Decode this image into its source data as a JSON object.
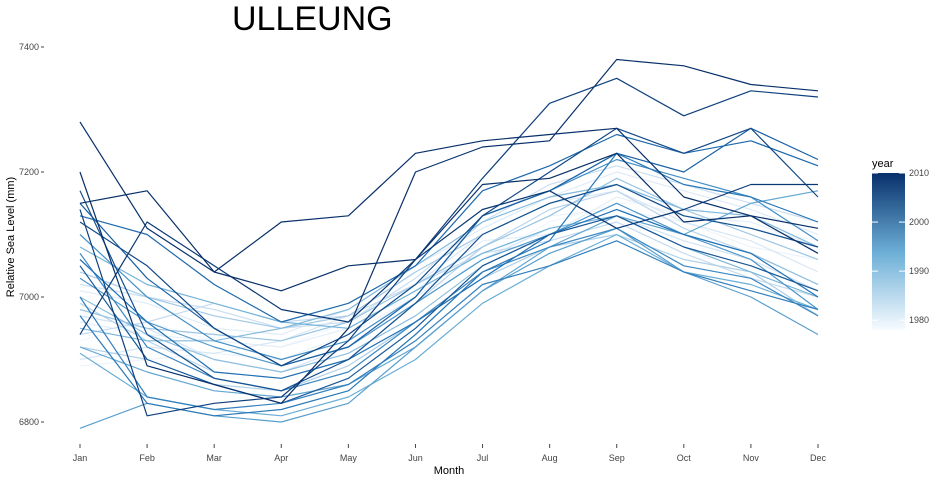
{
  "chart_data": {
    "type": "line",
    "title": "ULLEUNG",
    "xlabel": "Month",
    "ylabel": "Relative Sea Level (mm)",
    "categories": [
      "Jan",
      "Feb",
      "Mar",
      "Apr",
      "May",
      "Jun",
      "Jul",
      "Aug",
      "Sep",
      "Oct",
      "Nov",
      "Dec"
    ],
    "ylim": [
      6780,
      7410
    ],
    "yticks": [
      6800,
      7000,
      7200,
      7400
    ],
    "yticklabels": [
      "6800",
      "7000",
      "7200",
      "7400"
    ],
    "grid": false,
    "legend": {
      "title": "year",
      "placement": "right",
      "type": "gradient",
      "range": [
        1978,
        2010
      ],
      "ticks": [
        1980,
        1990,
        2000,
        2010
      ],
      "ticklabels": [
        "1980",
        "1990",
        "2000",
        "2010"
      ],
      "color_low": "#f7fbff",
      "color_high": "#08306b"
    },
    "series": [
      {
        "year": 1979,
        "values": [
          6930,
          6960,
          6930,
          6920,
          6960,
          7000,
          7060,
          7120,
          7150,
          7150,
          7110,
          7090
        ]
      },
      {
        "year": 1980,
        "values": [
          6890,
          6900,
          6910,
          6900,
          6940,
          7000,
          7080,
          7130,
          7140,
          7120,
          7080,
          7060
        ]
      },
      {
        "year": 1981,
        "values": [
          6960,
          6940,
          6930,
          6920,
          6950,
          7010,
          7090,
          7100,
          7160,
          7130,
          7120,
          7080
        ]
      },
      {
        "year": 1982,
        "values": [
          7010,
          6990,
          6950,
          6940,
          6980,
          7050,
          7110,
          7160,
          7200,
          7170,
          7140,
          7100
        ]
      },
      {
        "year": 1983,
        "values": [
          6900,
          6920,
          6910,
          6930,
          6970,
          7020,
          7100,
          7150,
          7170,
          7120,
          7090,
          7040
        ]
      },
      {
        "year": 1984,
        "values": [
          6970,
          6950,
          6900,
          6880,
          6920,
          6990,
          7060,
          7110,
          7130,
          7090,
          7060,
          7010
        ]
      },
      {
        "year": 1985,
        "values": [
          7020,
          7000,
          6980,
          6950,
          6960,
          7030,
          7120,
          7180,
          7210,
          7180,
          7150,
          7120
        ]
      },
      {
        "year": 1986,
        "values": [
          6940,
          6960,
          6990,
          6960,
          6970,
          7020,
          7070,
          7090,
          7120,
          7070,
          7030,
          7000
        ]
      },
      {
        "year": 1987,
        "values": [
          6990,
          6930,
          6880,
          6870,
          6900,
          6990,
          7080,
          7140,
          7170,
          7110,
          7070,
          7020
        ]
      },
      {
        "year": 1988,
        "values": [
          6920,
          6900,
          6860,
          6850,
          6890,
          6960,
          7030,
          7080,
          7100,
          7060,
          7040,
          6970
        ]
      },
      {
        "year": 1989,
        "values": [
          7040,
          7000,
          6970,
          6950,
          6970,
          7040,
          7100,
          7150,
          7180,
          7130,
          7110,
          7080
        ]
      },
      {
        "year": 1990,
        "values": [
          6980,
          6950,
          6940,
          6930,
          6960,
          7020,
          7080,
          7130,
          7190,
          7140,
          7100,
          7060
        ]
      },
      {
        "year": 1991,
        "values": [
          7000,
          6940,
          6900,
          6880,
          6910,
          6970,
          7050,
          7100,
          7140,
          7100,
          7070,
          7020
        ]
      },
      {
        "year": 1992,
        "values": [
          6950,
          6930,
          6930,
          6950,
          6980,
          7050,
          7120,
          7160,
          7180,
          7140,
          7130,
          7080
        ]
      },
      {
        "year": 1993,
        "values": [
          7080,
          7020,
          6990,
          6960,
          6950,
          7010,
          7070,
          7110,
          7130,
          7080,
          7040,
          7000
        ]
      },
      {
        "year": 1994,
        "values": [
          6910,
          6840,
          6820,
          6810,
          6840,
          6900,
          6990,
          7050,
          7100,
          7040,
          7020,
          6980
        ]
      },
      {
        "year": 1995,
        "values": [
          6920,
          6880,
          6850,
          6840,
          6860,
          6920,
          7010,
          7080,
          7130,
          7100,
          7150,
          7170
        ]
      },
      {
        "year": 1996,
        "values": [
          6790,
          6830,
          6810,
          6800,
          6830,
          6920,
          7010,
          7070,
          7110,
          7040,
          7000,
          6940
        ]
      },
      {
        "year": 1997,
        "values": [
          7030,
          6960,
          6920,
          6890,
          6920,
          6990,
          7060,
          7100,
          7150,
          7100,
          7060,
          6980
        ]
      },
      {
        "year": 1998,
        "values": [
          7100,
          7000,
          6930,
          6900,
          6930,
          7000,
          7130,
          7170,
          7220,
          7190,
          7160,
          7090
        ]
      },
      {
        "year": 1999,
        "values": [
          7070,
          6920,
          6870,
          6850,
          6880,
          6960,
          7040,
          7080,
          7110,
          7050,
          7030,
          6970
        ]
      },
      {
        "year": 2000,
        "values": [
          7000,
          6840,
          6820,
          6830,
          6860,
          6930,
          7020,
          7050,
          7090,
          7040,
          7010,
          6980
        ]
      },
      {
        "year": 2001,
        "values": [
          6970,
          6830,
          6810,
          6820,
          6850,
          6940,
          7040,
          7090,
          7230,
          7180,
          7160,
          7120
        ]
      },
      {
        "year": 2002,
        "values": [
          7060,
          6960,
          6880,
          6870,
          6900,
          6960,
          7030,
          7100,
          7140,
          7100,
          7070,
          7000
        ]
      },
      {
        "year": 2003,
        "values": [
          7130,
          7100,
          7020,
          6960,
          6990,
          7050,
          7170,
          7210,
          7260,
          7230,
          7250,
          7210
        ]
      },
      {
        "year": 2004,
        "values": [
          7150,
          7030,
          6950,
          6890,
          6920,
          7000,
          7130,
          7170,
          7230,
          7200,
          7270,
          7220
        ]
      },
      {
        "year": 2005,
        "values": [
          7050,
          6900,
          6860,
          6830,
          6870,
          6950,
          7050,
          7100,
          7130,
          7080,
          7050,
          7010
        ]
      },
      {
        "year": 2006,
        "values": [
          7170,
          6940,
          6870,
          6850,
          6900,
          6990,
          7100,
          7150,
          7180,
          7130,
          7110,
          7080
        ]
      },
      {
        "year": 2007,
        "values": [
          7120,
          7050,
          6950,
          6890,
          6940,
          7020,
          7130,
          7200,
          7270,
          7230,
          7270,
          7160
        ]
      },
      {
        "year": 2008,
        "values": [
          7140,
          6810,
          6830,
          6840,
          6930,
          7060,
          7190,
          7310,
          7350,
          7290,
          7330,
          7320
        ]
      },
      {
        "year": 2009,
        "values": [
          6940,
          7120,
          7050,
          6980,
          6960,
          7060,
          7140,
          7170,
          7110,
          7140,
          7180,
          7180
        ]
      },
      {
        "year": 2010,
        "values": [
          7200,
          6890,
          6860,
          6830,
          6950,
          7200,
          7240,
          7250,
          7380,
          7370,
          7340,
          7330
        ]
      },
      {
        "year": 2011,
        "values": [
          7280,
          7110,
          7040,
          7010,
          7050,
          7060,
          7180,
          7190,
          7230,
          7120,
          7130,
          7070
        ]
      },
      {
        "year": 2012,
        "values": [
          7150,
          7170,
          7040,
          7120,
          7130,
          7230,
          7250,
          7260,
          7270,
          7160,
          7130,
          7110
        ]
      }
    ]
  }
}
